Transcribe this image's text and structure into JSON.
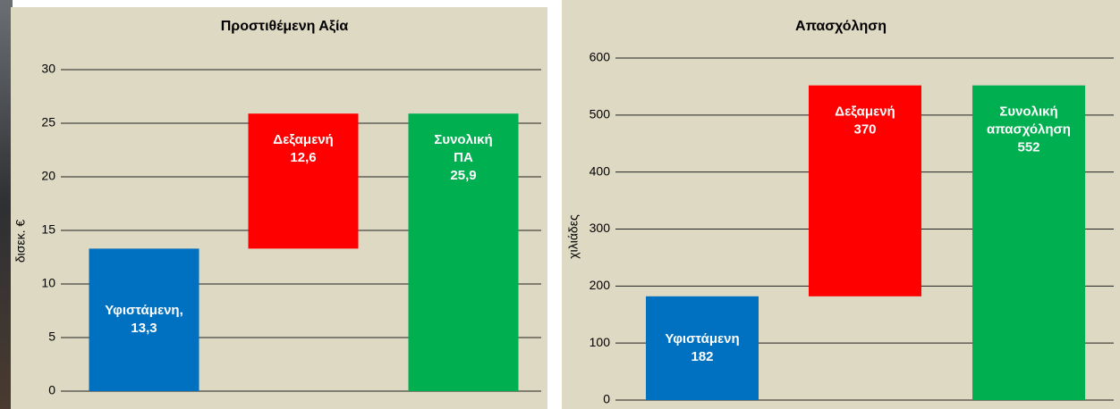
{
  "chart_data": [
    {
      "type": "waterfall",
      "title": "Προστιθέμενη Αξία",
      "y_label": "δισεκ. €",
      "categories": [
        [
          "Υφιστάμενη,"
        ],
        [
          "Δεξαμενή"
        ],
        [
          "Συνολική",
          "ΠΑ"
        ]
      ],
      "values": [
        13.3,
        12.6,
        25.9
      ],
      "value_labels": [
        "13,3",
        "12,6",
        "25,9"
      ],
      "is_total": [
        false,
        false,
        true
      ],
      "colors": [
        "#0070c0",
        "#ff0000",
        "#00b050"
      ],
      "ylim": [
        0,
        30
      ],
      "yticks": [
        0,
        5,
        10,
        15,
        20,
        25,
        30
      ],
      "grid": true
    },
    {
      "type": "waterfall",
      "title": "Απασχόληση",
      "y_label": "χιλιάδες",
      "categories": [
        [
          "Υφιστάμενη"
        ],
        [
          "Δεξαμενή"
        ],
        [
          "Συνολική",
          "απασχόληση"
        ]
      ],
      "values": [
        182,
        370,
        552
      ],
      "value_labels": [
        "182",
        "370",
        "552"
      ],
      "is_total": [
        false,
        false,
        true
      ],
      "colors": [
        "#0070c0",
        "#ff0000",
        "#00b050"
      ],
      "ylim": [
        0,
        600
      ],
      "yticks": [
        0,
        100,
        200,
        300,
        400,
        500,
        600
      ],
      "grid": true
    }
  ]
}
